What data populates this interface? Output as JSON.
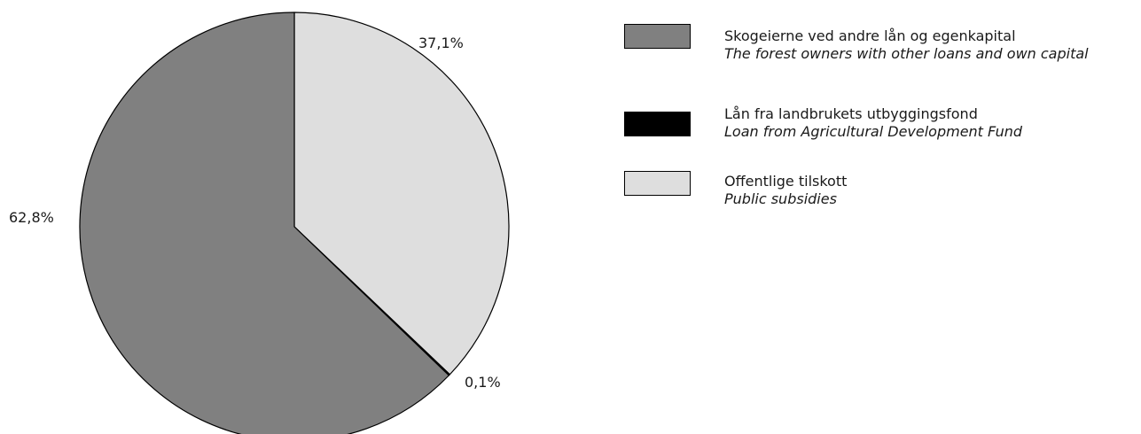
{
  "chart_data": {
    "type": "pie",
    "slices": [
      {
        "label": "Offentlige tilskott",
        "label_en": "Public subsidies",
        "value": 37.1,
        "display": "37,1%",
        "color": "#dedede"
      },
      {
        "label": "Lån fra landbrukets utbyggingsfond",
        "label_en": "Loan from Agricultural Development Fund",
        "value": 0.1,
        "display": "0,1%",
        "color": "#000000"
      },
      {
        "label": "Skogeierne ved andre lån og egenkapital",
        "label_en": "The forest owners with other loans and own capital",
        "value": 62.8,
        "display": "62,8%",
        "color": "#808080"
      }
    ],
    "legend": [
      {
        "label": "Skogeierne ved andre lån og egenkapital",
        "label_en": "The forest owners with other loans and own capital",
        "color": "#808080"
      },
      {
        "label": "Lån fra landbrukets utbyggingsfond",
        "label_en": "Loan from Agricultural Development Fund",
        "color": "#000000"
      },
      {
        "label": "Offentlige tilskott",
        "label_en": "Public subsidies",
        "color": "#dedede"
      }
    ],
    "legend_position": "right",
    "start_angle": "12 o'clock, clockwise"
  }
}
